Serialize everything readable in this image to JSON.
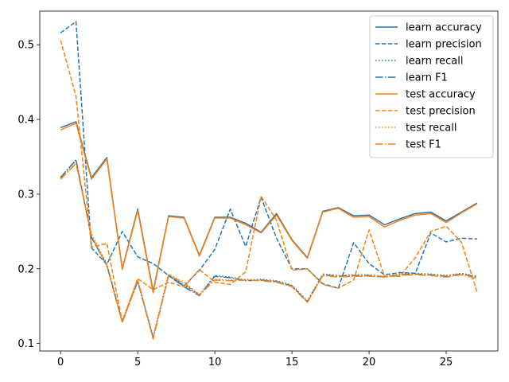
{
  "chart_data": {
    "type": "line",
    "x": [
      0,
      1,
      2,
      3,
      4,
      5,
      6,
      7,
      8,
      9,
      10,
      11,
      12,
      13,
      14,
      15,
      16,
      17,
      18,
      19,
      20,
      21,
      22,
      23,
      24,
      25,
      26,
      27
    ],
    "xlim": [
      -1.35,
      28.35
    ],
    "ylim": [
      0.09,
      0.545
    ],
    "xticks": [
      0,
      5,
      10,
      15,
      20,
      25
    ],
    "yticks": [
      0.1,
      0.2,
      0.3,
      0.4,
      0.5
    ],
    "ytick_labels": [
      "0.1",
      "0.2",
      "0.3",
      "0.4",
      "0.5"
    ],
    "legend_position": "upper right",
    "grid": false,
    "series": [
      {
        "name": "learn accuracy",
        "color": "#1f77b4",
        "dash": "solid",
        "values": [
          0.389,
          0.397,
          0.322,
          0.349,
          0.2,
          0.28,
          0.17,
          0.271,
          0.269,
          0.218,
          0.269,
          0.269,
          0.261,
          0.249,
          0.274,
          0.239,
          0.215,
          0.277,
          0.282,
          0.271,
          0.272,
          0.259,
          0.267,
          0.274,
          0.276,
          0.264,
          0.276,
          0.288
        ]
      },
      {
        "name": "learn precision",
        "color": "#1f77b4",
        "dash": "dashed",
        "values": [
          0.516,
          0.531,
          0.228,
          0.206,
          0.25,
          0.216,
          0.207,
          0.191,
          0.177,
          0.198,
          0.226,
          0.28,
          0.23,
          0.296,
          0.241,
          0.2,
          0.2,
          0.18,
          0.174,
          0.235,
          0.207,
          0.192,
          0.195,
          0.194,
          0.248,
          0.236,
          0.241,
          0.24
        ]
      },
      {
        "name": "learn recall",
        "color": "#1f77b4",
        "dash": "dotted",
        "values": [
          0.323,
          0.345,
          0.244,
          0.207,
          0.131,
          0.184,
          0.109,
          0.192,
          0.178,
          0.165,
          0.191,
          0.189,
          0.185,
          0.186,
          0.184,
          0.178,
          0.157,
          0.193,
          0.191,
          0.192,
          0.192,
          0.19,
          0.193,
          0.194,
          0.193,
          0.191,
          0.194,
          0.19
        ]
      },
      {
        "name": "learn F1",
        "color": "#1f77b4",
        "dash": "dashdot",
        "values": [
          0.322,
          0.346,
          0.242,
          0.205,
          0.129,
          0.183,
          0.107,
          0.191,
          0.176,
          0.164,
          0.19,
          0.188,
          0.184,
          0.185,
          0.183,
          0.177,
          0.156,
          0.192,
          0.19,
          0.191,
          0.191,
          0.189,
          0.192,
          0.193,
          0.192,
          0.19,
          0.193,
          0.189
        ]
      },
      {
        "name": "test accuracy",
        "color": "#ff7f0e",
        "dash": "solid",
        "values": [
          0.386,
          0.395,
          0.32,
          0.347,
          0.199,
          0.278,
          0.168,
          0.27,
          0.268,
          0.217,
          0.268,
          0.268,
          0.259,
          0.248,
          0.272,
          0.238,
          0.214,
          0.276,
          0.281,
          0.269,
          0.27,
          0.256,
          0.265,
          0.272,
          0.274,
          0.262,
          0.275,
          0.287
        ]
      },
      {
        "name": "test precision",
        "color": "#ff7f0e",
        "dash": "dashed",
        "values": [
          0.506,
          0.431,
          0.229,
          0.234,
          0.129,
          0.187,
          0.172,
          0.182,
          0.176,
          0.199,
          0.182,
          0.179,
          0.196,
          0.297,
          0.265,
          0.198,
          0.2,
          0.179,
          0.174,
          0.185,
          0.252,
          0.19,
          0.19,
          0.215,
          0.25,
          0.257,
          0.235,
          0.169
        ]
      },
      {
        "name": "test recall",
        "color": "#ff7f0e",
        "dash": "dotted",
        "values": [
          0.321,
          0.342,
          0.247,
          0.206,
          0.13,
          0.186,
          0.108,
          0.193,
          0.182,
          0.166,
          0.186,
          0.185,
          0.186,
          0.185,
          0.183,
          0.177,
          0.156,
          0.192,
          0.19,
          0.191,
          0.191,
          0.19,
          0.192,
          0.193,
          0.192,
          0.19,
          0.193,
          0.188
        ]
      },
      {
        "name": "test F1",
        "color": "#ff7f0e",
        "dash": "dashdot",
        "values": [
          0.32,
          0.341,
          0.245,
          0.204,
          0.128,
          0.185,
          0.106,
          0.192,
          0.18,
          0.165,
          0.185,
          0.184,
          0.185,
          0.184,
          0.182,
          0.176,
          0.155,
          0.191,
          0.189,
          0.19,
          0.19,
          0.189,
          0.191,
          0.192,
          0.191,
          0.189,
          0.192,
          0.187
        ]
      }
    ]
  }
}
